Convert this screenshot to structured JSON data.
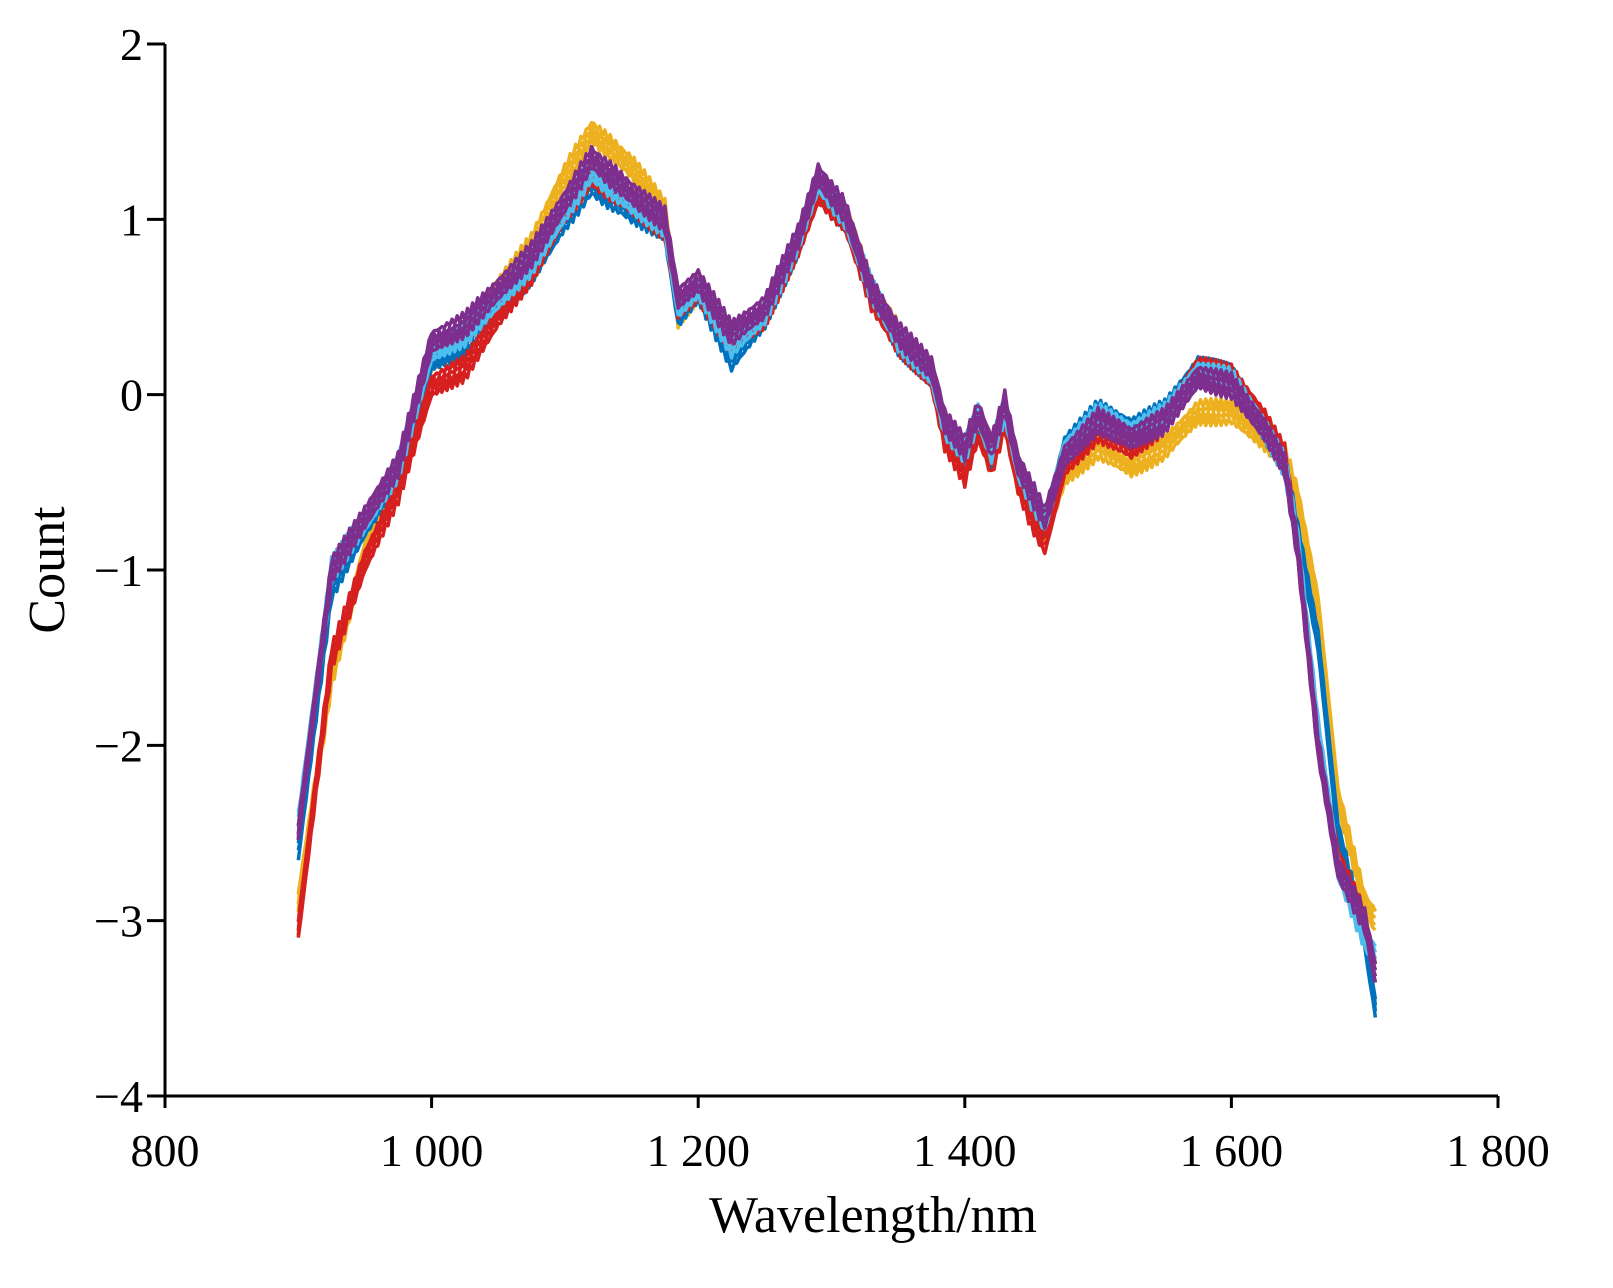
{
  "chart_data": {
    "type": "line",
    "title": "",
    "xlabel": "Wavelength/nm",
    "ylabel": "Count",
    "xlim": [
      800,
      1800
    ],
    "ylim": [
      -4,
      2
    ],
    "xticks": [
      800,
      1000,
      1200,
      1400,
      1600,
      1800
    ],
    "xtick_labels": [
      "800",
      "1 000",
      "1 200",
      "1 400",
      "1 600",
      "1 800"
    ],
    "yticks": [
      -4,
      -3,
      -2,
      -1,
      0,
      1,
      2
    ],
    "ytick_labels": [
      "−4",
      "−3",
      "−2",
      "−1",
      "0",
      "1",
      "2"
    ],
    "grid": false,
    "legend": "none",
    "x": [
      900,
      925,
      950,
      975,
      1000,
      1025,
      1050,
      1075,
      1100,
      1120,
      1150,
      1175,
      1185,
      1200,
      1225,
      1250,
      1275,
      1290,
      1310,
      1330,
      1350,
      1375,
      1385,
      1400,
      1410,
      1420,
      1430,
      1440,
      1450,
      1460,
      1475,
      1500,
      1525,
      1550,
      1575,
      1600,
      1625,
      1640,
      1650,
      1665,
      1680,
      1700,
      1708
    ],
    "series": [
      {
        "name": "spectrum-orange",
        "color": "#EDB120",
        "values": [
          -2.9,
          -1.6,
          -0.9,
          -0.5,
          0.2,
          0.35,
          0.6,
          0.85,
          1.25,
          1.5,
          1.3,
          1.05,
          0.45,
          0.6,
          0.3,
          0.45,
          0.9,
          1.2,
          1.05,
          0.6,
          0.35,
          0.1,
          -0.25,
          -0.4,
          -0.2,
          -0.4,
          -0.15,
          -0.5,
          -0.65,
          -0.8,
          -0.45,
          -0.3,
          -0.4,
          -0.3,
          -0.1,
          -0.1,
          -0.25,
          -0.35,
          -0.6,
          -1.2,
          -2.3,
          -2.9,
          -3.0
        ]
      },
      {
        "name": "spectrum-blue",
        "color": "#0072BD",
        "values": [
          -2.6,
          -1.1,
          -0.75,
          -0.45,
          0.2,
          0.3,
          0.5,
          0.7,
          1.0,
          1.2,
          1.05,
          0.95,
          0.45,
          0.6,
          0.2,
          0.45,
          0.85,
          1.2,
          1.0,
          0.6,
          0.3,
          0.1,
          -0.2,
          -0.35,
          -0.15,
          -0.35,
          -0.1,
          -0.45,
          -0.6,
          -0.75,
          -0.3,
          -0.1,
          -0.2,
          -0.1,
          0.15,
          0.1,
          -0.2,
          -0.4,
          -0.8,
          -1.4,
          -2.5,
          -3.1,
          -3.5
        ]
      },
      {
        "name": "spectrum-red",
        "color": "#D62020",
        "values": [
          -3.05,
          -1.5,
          -0.95,
          -0.55,
          0.05,
          0.15,
          0.45,
          0.7,
          1.05,
          1.25,
          1.1,
          0.95,
          0.5,
          0.6,
          0.3,
          0.45,
          0.85,
          1.15,
          1.0,
          0.55,
          0.3,
          0.1,
          -0.25,
          -0.45,
          -0.2,
          -0.4,
          -0.15,
          -0.5,
          -0.7,
          -0.85,
          -0.4,
          -0.2,
          -0.3,
          -0.15,
          0.15,
          0.1,
          -0.15,
          -0.35,
          -0.9,
          -2.0,
          -2.65,
          -3.0,
          -3.3
        ]
      },
      {
        "name": "spectrum-cyan",
        "color": "#4DBEEE",
        "values": [
          -2.45,
          -1.0,
          -0.72,
          -0.42,
          0.25,
          0.35,
          0.55,
          0.75,
          1.05,
          1.28,
          1.1,
          0.97,
          0.5,
          0.62,
          0.28,
          0.47,
          0.88,
          1.22,
          1.02,
          0.6,
          0.32,
          0.12,
          -0.18,
          -0.32,
          -0.12,
          -0.32,
          -0.08,
          -0.42,
          -0.58,
          -0.72,
          -0.32,
          -0.12,
          -0.22,
          -0.12,
          0.12,
          0.08,
          -0.2,
          -0.4,
          -0.85,
          -1.9,
          -2.7,
          -3.1,
          -3.2
        ]
      },
      {
        "name": "spectrum-purple",
        "color": "#7E2F8E",
        "values": [
          -2.5,
          -1.0,
          -0.7,
          -0.4,
          0.3,
          0.4,
          0.6,
          0.8,
          1.1,
          1.35,
          1.15,
          1.0,
          0.55,
          0.65,
          0.35,
          0.5,
          0.9,
          1.25,
          1.05,
          0.6,
          0.35,
          0.15,
          -0.15,
          -0.3,
          -0.1,
          -0.3,
          -0.05,
          -0.4,
          -0.55,
          -0.7,
          -0.35,
          -0.15,
          -0.25,
          -0.15,
          0.1,
          0.05,
          -0.2,
          -0.4,
          -0.9,
          -2.0,
          -2.7,
          -3.0,
          -3.3
        ]
      }
    ]
  }
}
